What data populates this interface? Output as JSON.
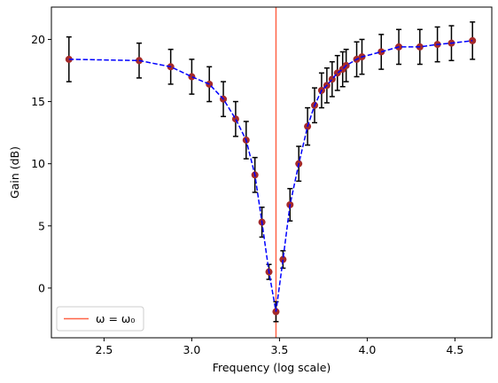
{
  "chart_data": {
    "type": "scatter",
    "title": "",
    "xlabel": "Frequency (log scale)",
    "ylabel": "Gain (dB)",
    "xlim": [
      2.2,
      4.71
    ],
    "ylim": [
      -4.0,
      22.6
    ],
    "x_ticks": [
      2.5,
      3.0,
      3.5,
      4.0,
      4.5
    ],
    "x_tick_labels": [
      "2.5",
      "3.0",
      "3.5",
      "4.0",
      "4.5"
    ],
    "y_ticks": [
      0,
      5,
      10,
      15,
      20
    ],
    "y_tick_labels": [
      "0",
      "5",
      "10",
      "15",
      "20"
    ],
    "grid": false,
    "legend_position": "bottom-left",
    "reference_line": {
      "x": 3.48,
      "label": "ω = ω₀",
      "color": "#ff6347"
    },
    "series": [
      {
        "style": "points-with-errorbars-and-dashed-line",
        "marker_color": "#a52a2a",
        "line_color": "#0000ff",
        "errorbar_color": "#000000",
        "x": [
          2.3,
          2.7,
          2.88,
          3.0,
          3.1,
          3.18,
          3.25,
          3.31,
          3.36,
          3.4,
          3.44,
          3.48,
          3.52,
          3.56,
          3.61,
          3.66,
          3.7,
          3.74,
          3.77,
          3.8,
          3.83,
          3.86,
          3.88,
          3.94,
          3.97,
          4.08,
          4.18,
          4.3,
          4.4,
          4.48,
          4.6
        ],
        "y": [
          18.4,
          18.3,
          17.8,
          17.0,
          16.4,
          15.2,
          13.6,
          11.9,
          9.1,
          5.3,
          1.3,
          -1.9,
          2.3,
          6.7,
          10.0,
          13.0,
          14.7,
          15.9,
          16.3,
          16.8,
          17.3,
          17.6,
          17.9,
          18.4,
          18.6,
          19.0,
          19.4,
          19.4,
          19.6,
          19.7,
          19.9
        ],
        "yerr": [
          1.8,
          1.4,
          1.4,
          1.4,
          1.4,
          1.4,
          1.4,
          1.5,
          1.4,
          1.2,
          0.6,
          0.8,
          0.7,
          1.3,
          1.4,
          1.5,
          1.4,
          1.4,
          1.4,
          1.4,
          1.4,
          1.4,
          1.3,
          1.4,
          1.4,
          1.4,
          1.4,
          1.4,
          1.4,
          1.4,
          1.5
        ]
      }
    ]
  }
}
